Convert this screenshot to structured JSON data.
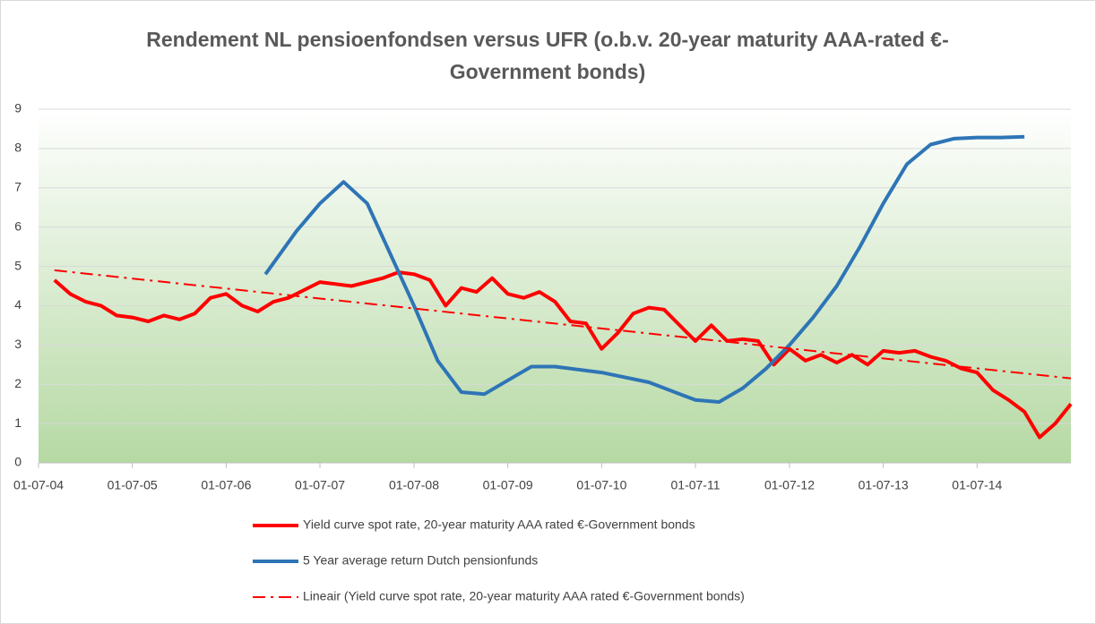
{
  "chart_data": {
    "type": "line",
    "title": "Rendement NL pensioenfondsen versus UFR (o.b.v. 20-year maturity AAA-rated €-Government bonds)",
    "xlim": [
      "2004-07-01",
      "2015-07-01"
    ],
    "xticks": [
      {
        "value": "2004-07-01",
        "label": "01-07-04"
      },
      {
        "value": "2005-07-01",
        "label": "01-07-05"
      },
      {
        "value": "2006-07-01",
        "label": "01-07-06"
      },
      {
        "value": "2007-07-01",
        "label": "01-07-07"
      },
      {
        "value": "2008-07-01",
        "label": "01-07-08"
      },
      {
        "value": "2009-07-01",
        "label": "01-07-09"
      },
      {
        "value": "2010-07-01",
        "label": "01-07-10"
      },
      {
        "value": "2011-07-01",
        "label": "01-07-11"
      },
      {
        "value": "2012-07-01",
        "label": "01-07-12"
      },
      {
        "value": "2013-07-01",
        "label": "01-07-13"
      },
      {
        "value": "2014-07-01",
        "label": "01-07-14"
      }
    ],
    "ylim": [
      0,
      9
    ],
    "yticks": [
      0,
      1,
      2,
      3,
      4,
      5,
      6,
      7,
      8,
      9
    ],
    "grid": true,
    "legend": "bottom",
    "series": [
      {
        "name": "Yield curve spot rate, 20-year maturity AAA rated €-Government bonds",
        "color": "#ff0000",
        "style": "solid",
        "x": [
          "2004-09",
          "2004-11",
          "2005-01",
          "2005-03",
          "2005-05",
          "2005-07",
          "2005-09",
          "2005-11",
          "2006-01",
          "2006-03",
          "2006-05",
          "2006-07",
          "2006-09",
          "2006-11",
          "2007-01",
          "2007-03",
          "2007-05",
          "2007-07",
          "2007-09",
          "2007-11",
          "2008-01",
          "2008-03",
          "2008-05",
          "2008-07",
          "2008-09",
          "2008-11",
          "2009-01",
          "2009-03",
          "2009-05",
          "2009-07",
          "2009-09",
          "2009-11",
          "2010-01",
          "2010-03",
          "2010-05",
          "2010-07",
          "2010-09",
          "2010-11",
          "2011-01",
          "2011-03",
          "2011-05",
          "2011-07",
          "2011-09",
          "2011-11",
          "2012-01",
          "2012-03",
          "2012-05",
          "2012-07",
          "2012-09",
          "2012-11",
          "2013-01",
          "2013-03",
          "2013-05",
          "2013-07",
          "2013-09",
          "2013-11",
          "2014-01",
          "2014-03",
          "2014-05",
          "2014-07",
          "2014-09",
          "2014-11",
          "2015-01",
          "2015-03",
          "2015-05",
          "2015-07"
        ],
        "values": [
          4.65,
          4.3,
          4.1,
          4.0,
          3.75,
          3.7,
          3.6,
          3.75,
          3.65,
          3.8,
          4.2,
          4.3,
          4.0,
          3.85,
          4.1,
          4.2,
          4.4,
          4.6,
          4.55,
          4.5,
          4.6,
          4.7,
          4.85,
          4.8,
          4.65,
          4.0,
          4.45,
          4.35,
          4.7,
          4.3,
          4.2,
          4.35,
          4.1,
          3.6,
          3.55,
          2.9,
          3.3,
          3.8,
          3.95,
          3.9,
          3.5,
          3.1,
          3.5,
          3.1,
          3.15,
          3.1,
          2.5,
          2.9,
          2.6,
          2.75,
          2.55,
          2.75,
          2.5,
          2.85,
          2.8,
          2.85,
          2.7,
          2.6,
          2.4,
          2.3,
          1.85,
          1.6,
          1.3,
          0.65,
          1.0,
          1.5
        ]
      },
      {
        "name": "5 Year average return Dutch pensionfunds",
        "color": "#2e75b6",
        "style": "solid",
        "x": [
          "2006-12",
          "2007-04",
          "2007-07",
          "2007-10",
          "2008-01",
          "2008-04",
          "2008-07",
          "2008-10",
          "2009-01",
          "2009-04",
          "2009-07",
          "2009-10",
          "2010-01",
          "2010-07",
          "2011-01",
          "2011-07",
          "2011-10",
          "2012-01",
          "2012-04",
          "2012-07",
          "2012-10",
          "2013-01",
          "2013-04",
          "2013-07",
          "2013-10",
          "2014-01",
          "2014-04",
          "2014-07",
          "2014-10",
          "2015-01"
        ],
        "values": [
          4.8,
          5.9,
          6.6,
          7.15,
          6.6,
          5.3,
          4.0,
          2.6,
          1.8,
          1.75,
          2.1,
          2.45,
          2.45,
          2.3,
          2.05,
          1.6,
          1.55,
          1.9,
          2.4,
          3.0,
          3.7,
          4.5,
          5.5,
          6.6,
          7.6,
          8.1,
          8.25,
          8.28,
          8.28,
          8.3
        ]
      },
      {
        "name": "Lineair  (Yield curve spot rate, 20-year maturity AAA rated €-Government bonds)",
        "color": "#ff0000",
        "style": "dashdot",
        "x": [
          "2004-09",
          "2015-07"
        ],
        "values": [
          4.9,
          2.15
        ]
      }
    ]
  }
}
